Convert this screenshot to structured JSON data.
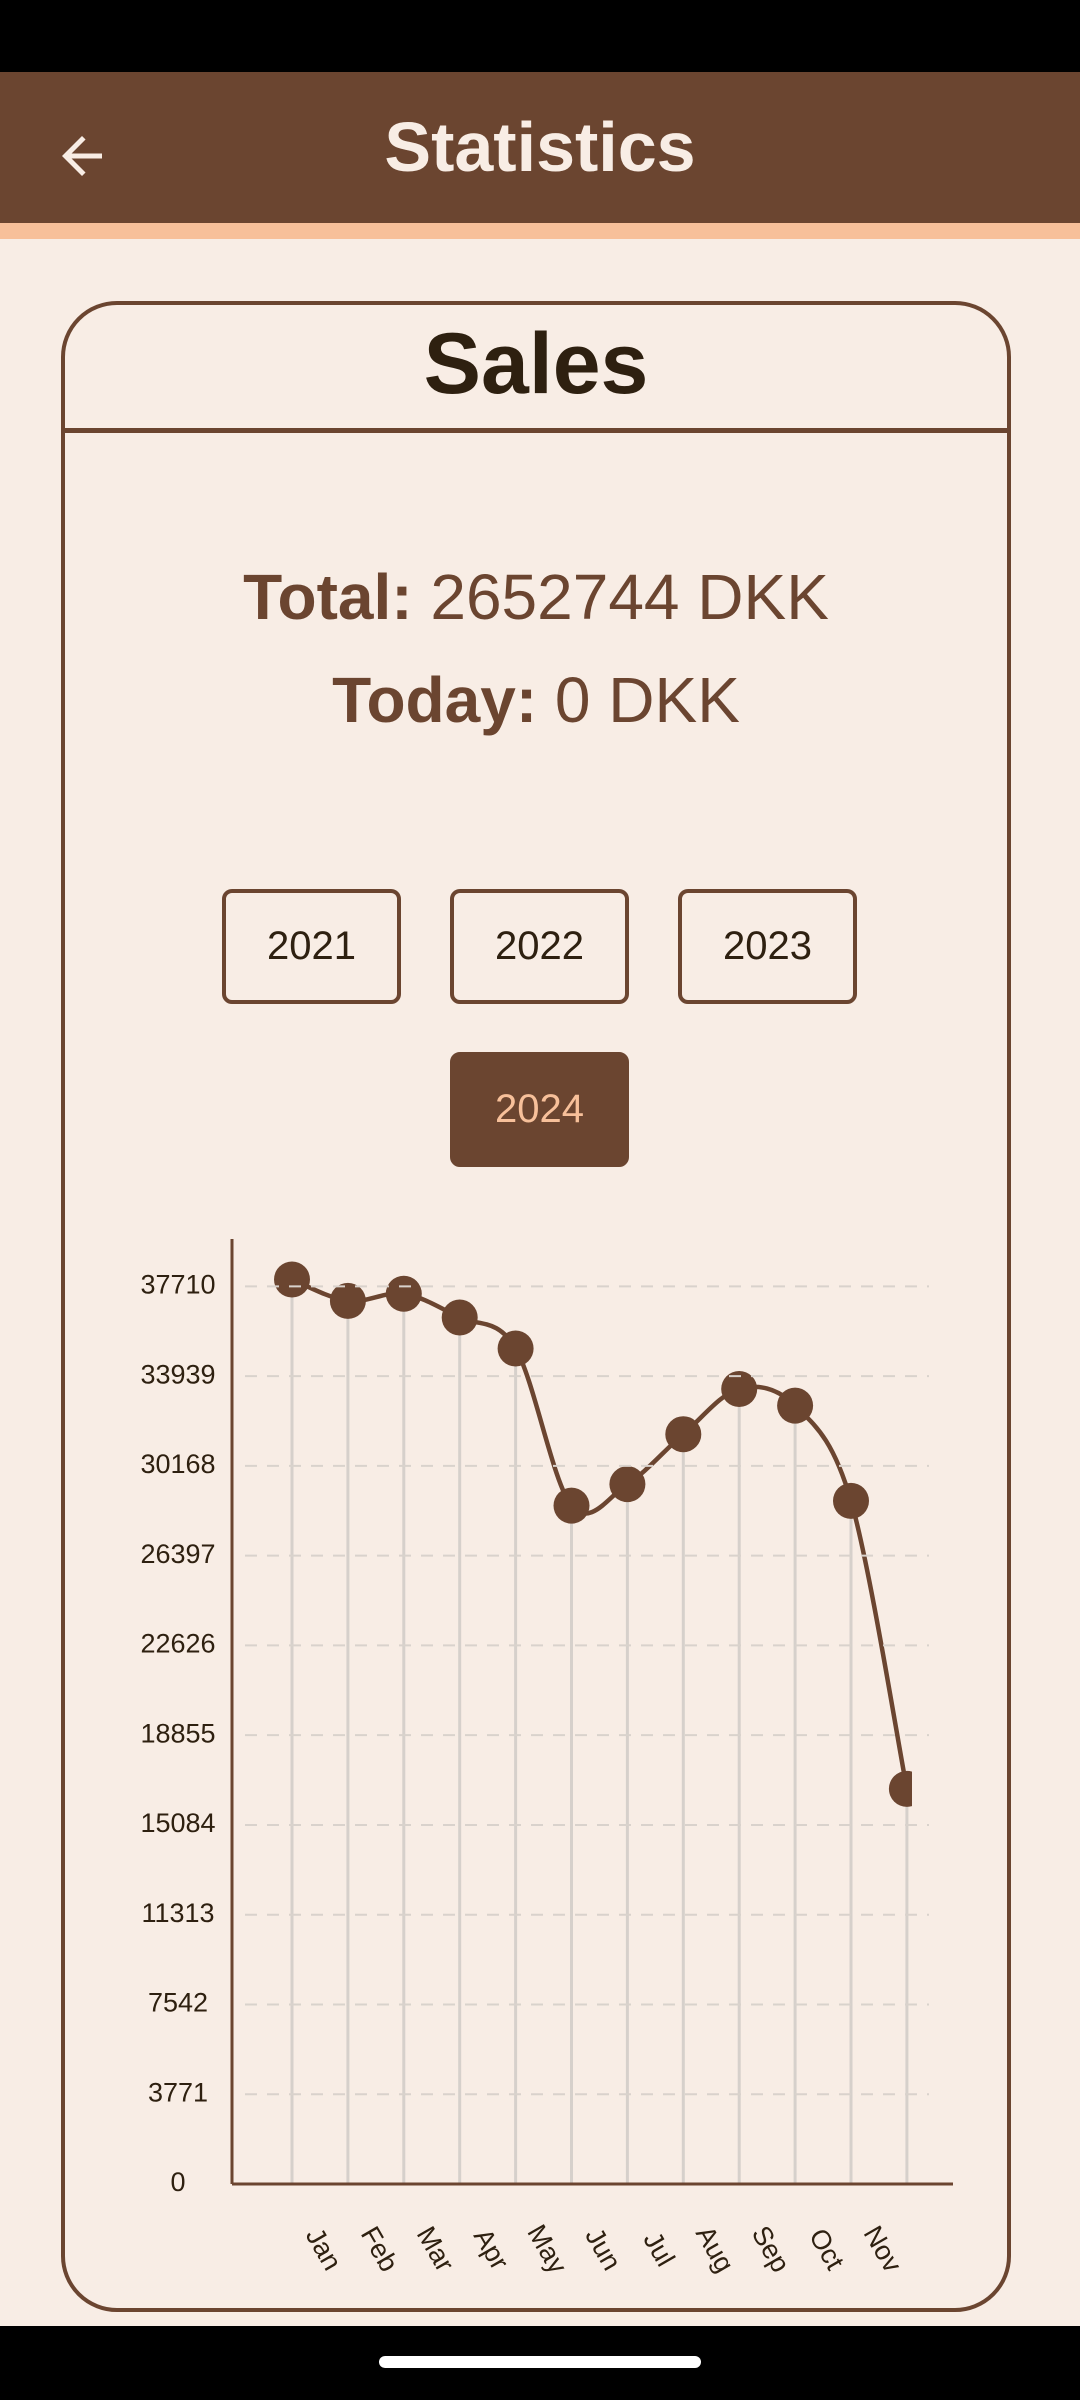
{
  "header": {
    "title": "Statistics"
  },
  "card": {
    "title": "Sales",
    "total_label": "Total:",
    "total_value": "2652744 DKK",
    "today_label": "Today:",
    "today_value": "0 DKK",
    "years": [
      "2021",
      "2022",
      "2023",
      "2024"
    ],
    "selected_year": "2024"
  },
  "chart_data": {
    "type": "line",
    "categories": [
      "Jan",
      "Feb",
      "Mar",
      "Apr",
      "May",
      "Jun",
      "Jul",
      "Aug",
      "Sep",
      "Oct",
      "Nov",
      null
    ],
    "series": [
      {
        "color": "#6b4530",
        "values": [
          38000,
          37100,
          37400,
          36400,
          35100,
          28500,
          29400,
          31500,
          33400,
          32700,
          28700,
          16600
        ]
      }
    ],
    "ylim": [
      0,
      39700
    ],
    "yticks": [
      0,
      3771,
      7542,
      11313,
      15084,
      18855,
      22626,
      26397,
      30168,
      33939,
      37710
    ],
    "grid": true,
    "smooth": true
  }
}
